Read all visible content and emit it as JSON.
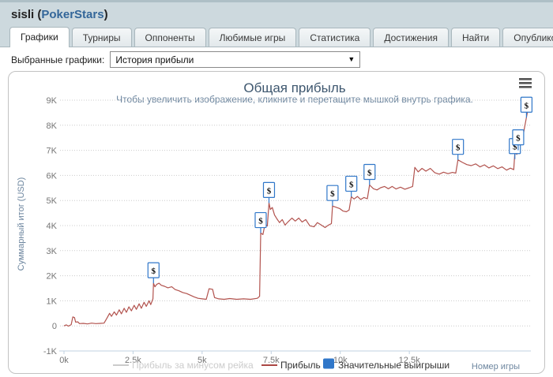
{
  "header": {
    "player": "sisli",
    "open_paren": " (",
    "site": "PokerStars",
    "close_paren": ")"
  },
  "tabs": [
    {
      "label": "Графики",
      "active": true
    },
    {
      "label": "Турниры",
      "active": false
    },
    {
      "label": "Оппоненты",
      "active": false
    },
    {
      "label": "Любимые игры",
      "active": false
    },
    {
      "label": "Статистика",
      "active": false
    },
    {
      "label": "Достижения",
      "active": false
    },
    {
      "label": "Найти",
      "active": false
    },
    {
      "label": "Опубликовать",
      "active": false
    }
  ],
  "graph_selector": {
    "label": "Выбранные графики:",
    "selected": "История прибыли",
    "dropdown_arrow": "▼"
  },
  "colors": {
    "link_blue": "#336699",
    "title": "#3E576F",
    "subtitle": "#6D869F",
    "profit_line": "#b2534e",
    "legend_profit": "#AA4643",
    "flag_blue": "#3077c9",
    "hidden_series": "#cccccc"
  },
  "chart_data": {
    "type": "line",
    "title": "Общая прибыль",
    "subtitle": "Чтобы увеличить изображение, кликните и перетащите мышкой внутрь графика.",
    "xlabel": "Номер игры",
    "ylabel": "Суммарный итог (USD)",
    "xlim": [
      0,
      16900
    ],
    "ylim": [
      -1000,
      9000
    ],
    "grid": "dotted-horizontal",
    "legend_position": "bottom-center",
    "x_ticks": [
      {
        "value": 0,
        "label": "0k"
      },
      {
        "value": 2500,
        "label": "2.5k"
      },
      {
        "value": 5000,
        "label": "5k"
      },
      {
        "value": 7500,
        "label": "7.5k"
      },
      {
        "value": 10000,
        "label": "10k"
      },
      {
        "value": 12500,
        "label": "12.5k"
      }
    ],
    "y_ticks": [
      {
        "value": -1000,
        "label": "-1K"
      },
      {
        "value": 0,
        "label": "0"
      },
      {
        "value": 1000,
        "label": "1K"
      },
      {
        "value": 2000,
        "label": "2K"
      },
      {
        "value": 3000,
        "label": "3K"
      },
      {
        "value": 4000,
        "label": "4K"
      },
      {
        "value": 5000,
        "label": "5K"
      },
      {
        "value": 6000,
        "label": "6K"
      },
      {
        "value": 7000,
        "label": "7K"
      },
      {
        "value": 8000,
        "label": "8K"
      },
      {
        "value": 9000,
        "label": "9K"
      }
    ],
    "legend": [
      {
        "label": "Прибыль за минусом рейка",
        "type": "line",
        "color": "#cccccc",
        "hidden": true
      },
      {
        "label": "Прибыль",
        "type": "line",
        "color": "#AA4643",
        "hidden": false
      },
      {
        "label": "Значительные выигрыши",
        "type": "flag",
        "color": "#3077c9",
        "hidden": false
      }
    ],
    "series": [
      {
        "name": "Прибыль за минусом рейка",
        "visible": false,
        "color": "#cccccc",
        "points": []
      },
      {
        "name": "Прибыль",
        "visible": true,
        "color": "#b2534e",
        "points": [
          [
            0,
            0
          ],
          [
            80,
            40
          ],
          [
            160,
            -10
          ],
          [
            260,
            50
          ],
          [
            320,
            360
          ],
          [
            380,
            330
          ],
          [
            420,
            150
          ],
          [
            500,
            160
          ],
          [
            560,
            90
          ],
          [
            700,
            100
          ],
          [
            850,
            80
          ],
          [
            1000,
            110
          ],
          [
            1150,
            90
          ],
          [
            1320,
            100
          ],
          [
            1450,
            110
          ],
          [
            1550,
            300
          ],
          [
            1650,
            500
          ],
          [
            1720,
            380
          ],
          [
            1820,
            560
          ],
          [
            1900,
            430
          ],
          [
            2000,
            640
          ],
          [
            2080,
            480
          ],
          [
            2180,
            700
          ],
          [
            2260,
            540
          ],
          [
            2350,
            760
          ],
          [
            2440,
            600
          ],
          [
            2540,
            820
          ],
          [
            2620,
            660
          ],
          [
            2720,
            880
          ],
          [
            2800,
            700
          ],
          [
            2900,
            940
          ],
          [
            2980,
            780
          ],
          [
            3080,
            1000
          ],
          [
            3140,
            850
          ],
          [
            3220,
            1080
          ],
          [
            3240,
            1700
          ],
          [
            3290,
            1560
          ],
          [
            3360,
            1660
          ],
          [
            3440,
            1700
          ],
          [
            3520,
            1620
          ],
          [
            3640,
            1580
          ],
          [
            3760,
            1520
          ],
          [
            3900,
            1560
          ],
          [
            4020,
            1450
          ],
          [
            4160,
            1400
          ],
          [
            4300,
            1330
          ],
          [
            4440,
            1290
          ],
          [
            4560,
            1230
          ],
          [
            4700,
            1160
          ],
          [
            4850,
            1100
          ],
          [
            5000,
            1080
          ],
          [
            5150,
            1060
          ],
          [
            5250,
            1480
          ],
          [
            5380,
            1460
          ],
          [
            5450,
            1130
          ],
          [
            5600,
            1080
          ],
          [
            5800,
            1060
          ],
          [
            6000,
            1090
          ],
          [
            6250,
            1060
          ],
          [
            6500,
            1080
          ],
          [
            6750,
            1060
          ],
          [
            7000,
            1100
          ],
          [
            7080,
            1180
          ],
          [
            7120,
            3700
          ],
          [
            7200,
            3640
          ],
          [
            7280,
            4080
          ],
          [
            7360,
            3980
          ],
          [
            7420,
            4900
          ],
          [
            7470,
            4640
          ],
          [
            7540,
            4720
          ],
          [
            7620,
            4420
          ],
          [
            7700,
            4280
          ],
          [
            7800,
            4120
          ],
          [
            7900,
            4240
          ],
          [
            8000,
            4020
          ],
          [
            8120,
            4160
          ],
          [
            8250,
            4300
          ],
          [
            8370,
            4180
          ],
          [
            8500,
            4300
          ],
          [
            8620,
            4140
          ],
          [
            8750,
            4240
          ],
          [
            8900,
            3990
          ],
          [
            9050,
            3950
          ],
          [
            9170,
            4120
          ],
          [
            9300,
            4030
          ],
          [
            9450,
            3920
          ],
          [
            9560,
            4010
          ],
          [
            9680,
            4080
          ],
          [
            9720,
            4780
          ],
          [
            9850,
            4730
          ],
          [
            9980,
            4680
          ],
          [
            10100,
            4580
          ],
          [
            10220,
            4550
          ],
          [
            10320,
            4620
          ],
          [
            10400,
            5150
          ],
          [
            10500,
            5060
          ],
          [
            10620,
            5160
          ],
          [
            10740,
            5040
          ],
          [
            10860,
            5120
          ],
          [
            10980,
            5070
          ],
          [
            11060,
            5620
          ],
          [
            11200,
            5470
          ],
          [
            11330,
            5420
          ],
          [
            11460,
            5510
          ],
          [
            11600,
            5560
          ],
          [
            11740,
            5470
          ],
          [
            11880,
            5560
          ],
          [
            12020,
            5460
          ],
          [
            12180,
            5530
          ],
          [
            12340,
            5450
          ],
          [
            12500,
            5510
          ],
          [
            12620,
            5560
          ],
          [
            12700,
            6320
          ],
          [
            12820,
            6140
          ],
          [
            12960,
            6280
          ],
          [
            13100,
            6170
          ],
          [
            13260,
            6280
          ],
          [
            13420,
            6110
          ],
          [
            13580,
            6050
          ],
          [
            13740,
            6130
          ],
          [
            13900,
            6070
          ],
          [
            14060,
            6120
          ],
          [
            14180,
            6090
          ],
          [
            14260,
            6620
          ],
          [
            14420,
            6520
          ],
          [
            14580,
            6430
          ],
          [
            14740,
            6390
          ],
          [
            14900,
            6460
          ],
          [
            15060,
            6340
          ],
          [
            15220,
            6420
          ],
          [
            15380,
            6300
          ],
          [
            15540,
            6380
          ],
          [
            15700,
            6270
          ],
          [
            15860,
            6340
          ],
          [
            16020,
            6210
          ],
          [
            16160,
            6290
          ],
          [
            16280,
            6230
          ],
          [
            16320,
            6900
          ],
          [
            16390,
            6840
          ],
          [
            16440,
            7300
          ],
          [
            16500,
            7260
          ],
          [
            16580,
            7320
          ],
          [
            16660,
            7850
          ],
          [
            16780,
            8550
          ]
        ]
      }
    ],
    "flags": {
      "name": "Значительные выигрыши",
      "symbol": "$",
      "border_color": "#3077c9",
      "points": [
        [
          3240,
          1700
        ],
        [
          7120,
          3700
        ],
        [
          7420,
          4900
        ],
        [
          9720,
          4780
        ],
        [
          10400,
          5150
        ],
        [
          11060,
          5620
        ],
        [
          14260,
          6620
        ],
        [
          16320,
          6650
        ],
        [
          16440,
          7000
        ],
        [
          16740,
          8300
        ]
      ]
    }
  }
}
